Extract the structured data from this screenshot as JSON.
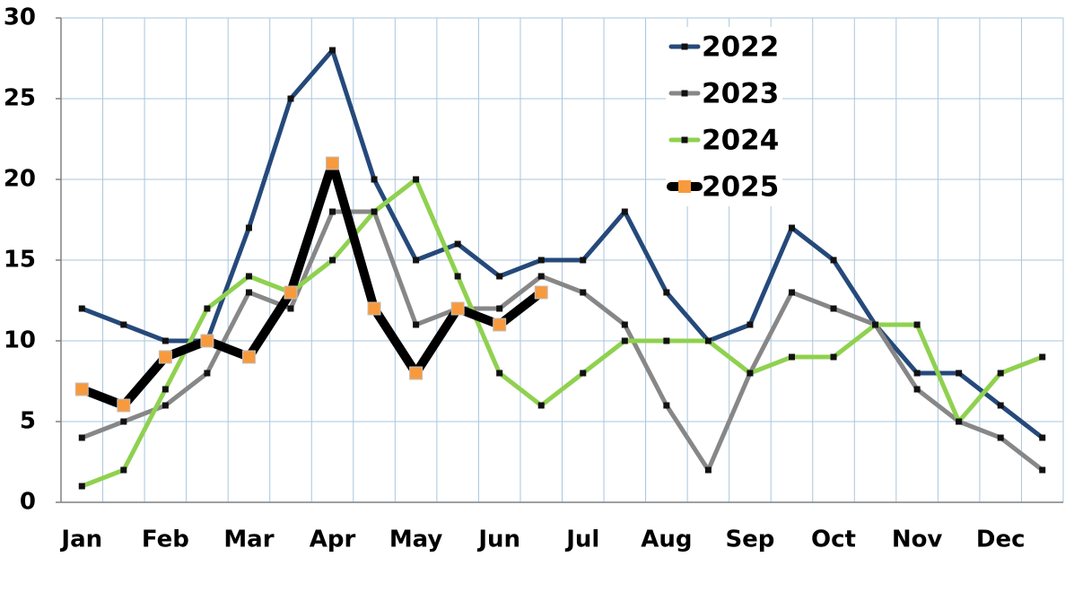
{
  "chart_data": {
    "type": "line",
    "categories": [
      "Jan",
      null,
      "Feb",
      null,
      "Mar",
      null,
      "Apr",
      null,
      "May",
      null,
      "Jun",
      null,
      "Jul",
      null,
      "Aug",
      null,
      "Sep",
      null,
      "Oct",
      null,
      "Nov",
      null,
      "Dec",
      null
    ],
    "series": [
      {
        "name": "2022",
        "color": "#25497a",
        "marker_color": "#111111",
        "values": [
          12,
          11,
          10,
          10,
          17,
          25,
          28,
          20,
          15,
          16,
          14,
          15,
          15,
          18,
          13,
          10,
          11,
          17,
          15,
          11,
          8,
          8,
          6,
          4
        ]
      },
      {
        "name": "2023",
        "color": "#878787",
        "marker_color": "#111111",
        "values": [
          4,
          5,
          6,
          8,
          13,
          12,
          18,
          18,
          11,
          12,
          12,
          14,
          13,
          11,
          6,
          2,
          8,
          13,
          12,
          11,
          7,
          5,
          4,
          2
        ]
      },
      {
        "name": "2024",
        "color": "#8fd14f",
        "marker_color": "#111111",
        "values": [
          1,
          2,
          7,
          12,
          14,
          13,
          15,
          18,
          20,
          14,
          8,
          6,
          8,
          10,
          10,
          10,
          8,
          9,
          9,
          11,
          11,
          5,
          8,
          9
        ]
      },
      {
        "name": "2025",
        "color": "#000000",
        "marker_color": "#f79a3e",
        "values": [
          7,
          6,
          9,
          10,
          9,
          13,
          21,
          12,
          8,
          12,
          11,
          13,
          null,
          null,
          null,
          null,
          null,
          null,
          null,
          null,
          null,
          null,
          null,
          null
        ]
      }
    ],
    "ylim": [
      0,
      30
    ],
    "yticks": [
      0,
      5,
      10,
      15,
      20,
      25,
      30
    ],
    "grid": true,
    "legend": "top-right"
  }
}
